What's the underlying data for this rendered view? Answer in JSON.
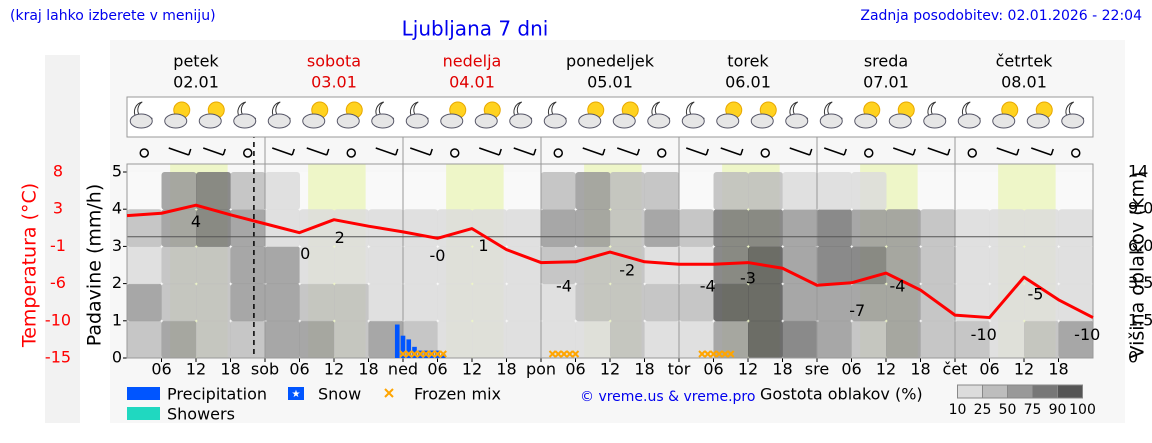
{
  "chart_data": {
    "type": "line",
    "note_left": "(kraj lahko izberete v meniju)",
    "title": "Ljubljana 7 dni",
    "updated": "Zadnja posodobitev: 02.01.2026 - 22:04",
    "days": [
      {
        "name": "petek",
        "date": "02.01",
        "color": "#000000"
      },
      {
        "name": "sobota",
        "date": "03.01",
        "color": "#e00000"
      },
      {
        "name": "nedelja",
        "date": "04.01",
        "color": "#e00000"
      },
      {
        "name": "ponedeljek",
        "date": "05.01",
        "color": "#000000"
      },
      {
        "name": "torek",
        "date": "06.01",
        "color": "#000000"
      },
      {
        "name": "sreda",
        "date": "07.01",
        "color": "#000000"
      },
      {
        "name": "četrtek",
        "date": "08.01",
        "color": "#000000"
      }
    ],
    "xlim": [
      0,
      168
    ],
    "xticks": [
      {
        "value": 6,
        "label": "06"
      },
      {
        "value": 12,
        "label": "12"
      },
      {
        "value": 18,
        "label": "18"
      },
      {
        "value": 24,
        "label": "sob"
      },
      {
        "value": 30,
        "label": "06"
      },
      {
        "value": 36,
        "label": "12"
      },
      {
        "value": 42,
        "label": "18"
      },
      {
        "value": 48,
        "label": "ned"
      },
      {
        "value": 54,
        "label": "06"
      },
      {
        "value": 60,
        "label": "12"
      },
      {
        "value": 66,
        "label": "18"
      },
      {
        "value": 72,
        "label": "pon"
      },
      {
        "value": 78,
        "label": "06"
      },
      {
        "value": 84,
        "label": "12"
      },
      {
        "value": 90,
        "label": "18"
      },
      {
        "value": 96,
        "label": "tor"
      },
      {
        "value": 102,
        "label": "06"
      },
      {
        "value": 108,
        "label": "12"
      },
      {
        "value": 114,
        "label": "18"
      },
      {
        "value": 120,
        "label": "sre"
      },
      {
        "value": 126,
        "label": "06"
      },
      {
        "value": 132,
        "label": "12"
      },
      {
        "value": 138,
        "label": "18"
      },
      {
        "value": 144,
        "label": "čet"
      },
      {
        "value": 150,
        "label": "06"
      },
      {
        "value": 156,
        "label": "12"
      },
      {
        "value": 162,
        "label": "18"
      }
    ],
    "daylight": [
      7.5,
      17.5
    ],
    "now": 22.07,
    "ylabel": "Padavine (mm/h)",
    "ylim": [
      0,
      5
    ],
    "yticks": [
      0,
      1,
      2,
      3,
      4,
      5
    ],
    "temp_label": "Temperatura (°C)",
    "temp_color": "#ff0000",
    "temp_lim": [
      -15,
      8
    ],
    "temp_ticks": [
      -15,
      {
        "value": -10.4,
        "label": "-10"
      },
      {
        "value": -5.8,
        "label": "-6"
      },
      {
        "value": -1.2,
        "label": "-1"
      },
      {
        "value": 3.4,
        "label": "3"
      },
      8
    ],
    "temp_zero": 0,
    "y2label": "Višina oblakov (km)",
    "y2ticks": [
      0,
      1.5,
      3.5,
      {
        "value": 6,
        "label": "6.0"
      },
      {
        "value": 9,
        "label": "9.0"
      },
      14
    ],
    "temperature": {
      "x": [
        0,
        6,
        12,
        18,
        24,
        30,
        36,
        42,
        48,
        54,
        60,
        66,
        72,
        78,
        84,
        90,
        96,
        102,
        108,
        114,
        120,
        126,
        132,
        138,
        144,
        150,
        156,
        162,
        168
      ],
      "values": [
        2.6,
        2.9,
        3.9,
        2.7,
        1.6,
        0.5,
        2.1,
        1.3,
        0.6,
        -0.2,
        1.0,
        -1.6,
        -3.2,
        -3.1,
        -1.9,
        -3.1,
        -3.4,
        -3.4,
        -3.2,
        -3.9,
        -6.0,
        -5.7,
        -4.5,
        -6.6,
        -9.7,
        -10.0,
        -5.0,
        -7.8,
        -10.0
      ]
    },
    "annotations": [
      {
        "x": 12,
        "value": 4,
        "label": "4"
      },
      {
        "x": 31,
        "value": 0,
        "label": "0"
      },
      {
        "x": 37,
        "value": 2,
        "label": "2"
      },
      {
        "x": 54,
        "value": -0.2,
        "label": "-0"
      },
      {
        "x": 62,
        "value": 1,
        "label": "1"
      },
      {
        "x": 76,
        "value": -4,
        "label": "-4"
      },
      {
        "x": 87,
        "value": -2,
        "label": "-2"
      },
      {
        "x": 101,
        "value": -4,
        "label": "-4"
      },
      {
        "x": 108,
        "value": -3,
        "label": "-3"
      },
      {
        "x": 127,
        "value": -7,
        "label": "-7"
      },
      {
        "x": 134,
        "value": -4,
        "label": "-4"
      },
      {
        "x": 149,
        "value": -10,
        "label": "-10"
      },
      {
        "x": 158,
        "value": -5,
        "label": "-5"
      },
      {
        "x": 167,
        "value": -10,
        "label": "-10"
      }
    ],
    "precipitation": {
      "color": "#0055ff",
      "x": [
        47,
        48,
        49,
        50,
        51,
        52,
        53,
        54,
        55
      ],
      "values": [
        0.9,
        0.6,
        0.5,
        0.3,
        0.2,
        0.2,
        0.2,
        0.2,
        0.1
      ]
    },
    "frozen_mix": {
      "color": "#ffa500",
      "x": [
        48,
        49,
        50,
        51,
        52,
        53,
        54,
        55,
        74,
        75,
        76,
        77,
        78,
        100,
        101,
        102,
        103,
        104,
        105
      ]
    },
    "cloud_density": [
      [
        40,
        50,
        40,
        30,
        60,
        50,
        40,
        50,
        30,
        20,
        10,
        10,
        20,
        10,
        30,
        20,
        20,
        60,
        90,
        80,
        50,
        40,
        50,
        30,
        40,
        20,
        30,
        50
      ],
      [
        50,
        40,
        30,
        50,
        70,
        40,
        30,
        20,
        20,
        10,
        10,
        10,
        20,
        30,
        40,
        30,
        30,
        90,
        90,
        70,
        60,
        50,
        60,
        40,
        20,
        10,
        10,
        20
      ],
      [
        10,
        30,
        40,
        70,
        60,
        20,
        10,
        10,
        10,
        10,
        10,
        10,
        30,
        40,
        30,
        20,
        20,
        80,
        90,
        60,
        80,
        80,
        60,
        40,
        10,
        10,
        10,
        10
      ],
      [
        30,
        70,
        80,
        60,
        20,
        10,
        10,
        10,
        10,
        10,
        10,
        10,
        60,
        70,
        40,
        60,
        30,
        80,
        80,
        60,
        80,
        60,
        50,
        30,
        10,
        10,
        10,
        10
      ],
      [
        0,
        60,
        80,
        30,
        10,
        0,
        0,
        0,
        0,
        0,
        0,
        0,
        30,
        50,
        40,
        30,
        0,
        30,
        30,
        20,
        20,
        10,
        0,
        0,
        0,
        0,
        0,
        0
      ]
    ],
    "legend": [
      {
        "name": "Precipitation",
        "color": "#0055ff"
      },
      {
        "name": "Snow",
        "color": "#0055ff"
      },
      {
        "name": "Frozen mix",
        "color": "#ffa500"
      },
      {
        "name": "Showers",
        "color": "#20d8c0"
      }
    ],
    "credit": "© vreme.us & vreme.pro",
    "cloud_scale_label": "Gostota oblakov (%)",
    "cloud_scale": [
      10,
      25,
      50,
      75,
      90,
      100
    ]
  }
}
